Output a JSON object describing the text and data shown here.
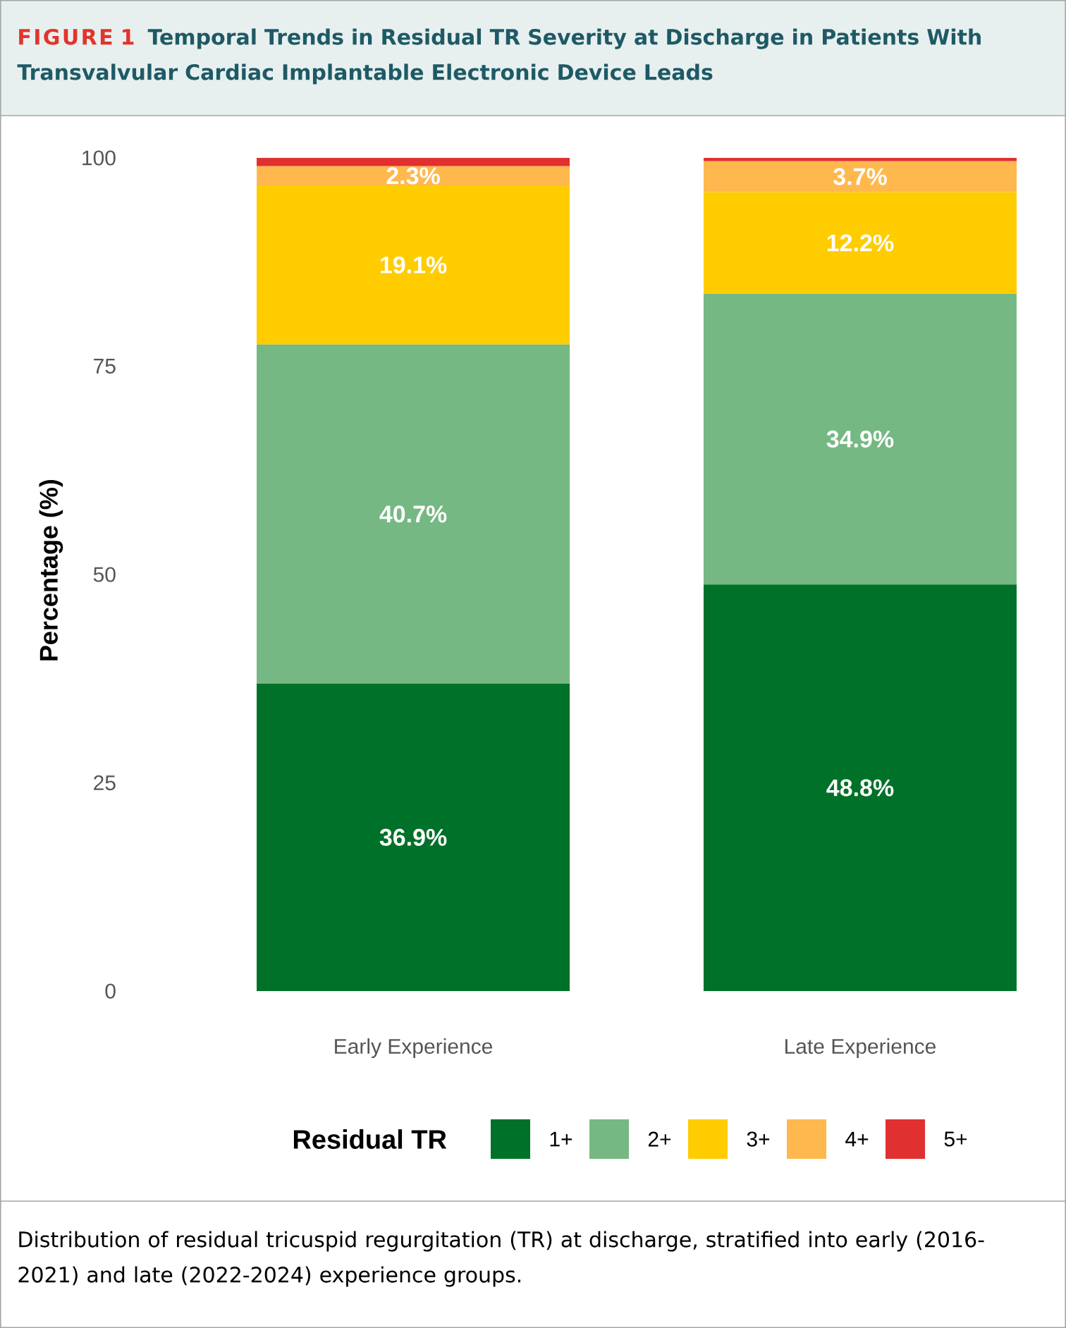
{
  "chart_data": {
    "type": "bar",
    "stacked": true,
    "title": "FIGURE 1",
    "subtitle": "Temporal Trends in Residual TR Severity at Discharge in Patients With Transvalvular Cardiac Implantable Electronic Device Leads",
    "ylabel": "Percentage (%)",
    "legend_title": "Residual TR",
    "legend": "bottom",
    "categories": [
      "Early Experience",
      "Late Experience"
    ],
    "series": [
      {
        "name": "1+",
        "color": "#007128",
        "values": [
          36.9,
          48.8
        ],
        "value_labels": [
          "36.9%",
          "48.8%"
        ]
      },
      {
        "name": "2+",
        "color": "#75b883",
        "values": [
          40.7,
          34.9
        ],
        "value_labels": [
          "40.7%",
          "34.9%"
        ]
      },
      {
        "name": "3+",
        "color": "#ffcc00",
        "values": [
          19.1,
          12.2
        ],
        "value_labels": [
          "19.1%",
          "12.2%"
        ]
      },
      {
        "name": "4+",
        "color": "#ffb84d",
        "values": [
          2.3,
          3.7
        ],
        "value_labels": [
          "2.3%",
          "3.7%"
        ]
      },
      {
        "name": "5+",
        "color": "#e03030",
        "values": [
          1.0,
          0.4
        ],
        "value_labels": [
          null,
          null
        ]
      }
    ],
    "ylim": [
      0,
      101
    ],
    "yticks": [
      0,
      25,
      50,
      75,
      100
    ],
    "annotations": [
      "Distribution of residual tricuspid regurgitation (TR) at discharge, stratified into early (2016-2021) and late (2022-2024) experience groups."
    ]
  }
}
